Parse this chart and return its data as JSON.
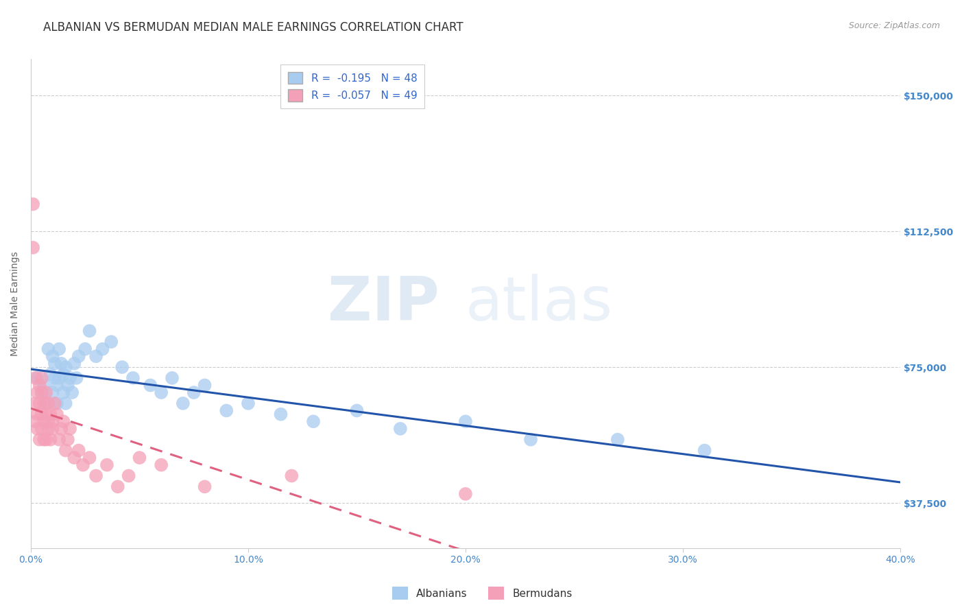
{
  "title": "ALBANIAN VS BERMUDAN MEDIAN MALE EARNINGS CORRELATION CHART",
  "source": "Source: ZipAtlas.com",
  "xlabel": "",
  "ylabel": "Median Male Earnings",
  "xlim": [
    0.0,
    0.4
  ],
  "ylim": [
    25000,
    160000
  ],
  "yticks": [
    37500,
    75000,
    112500,
    150000
  ],
  "ytick_labels": [
    "$37,500",
    "$75,000",
    "$112,500",
    "$150,000"
  ],
  "xticks": [
    0.0,
    0.1,
    0.2,
    0.3,
    0.4
  ],
  "xtick_labels": [
    "0.0%",
    "10.0%",
    "20.0%",
    "30.0%",
    "40.0%"
  ],
  "albanian_x": [
    0.003,
    0.005,
    0.006,
    0.007,
    0.008,
    0.009,
    0.01,
    0.01,
    0.011,
    0.011,
    0.012,
    0.012,
    0.013,
    0.013,
    0.014,
    0.015,
    0.015,
    0.016,
    0.016,
    0.017,
    0.018,
    0.019,
    0.02,
    0.021,
    0.022,
    0.025,
    0.027,
    0.03,
    0.033,
    0.037,
    0.042,
    0.047,
    0.055,
    0.06,
    0.065,
    0.07,
    0.075,
    0.08,
    0.09,
    0.1,
    0.115,
    0.13,
    0.15,
    0.17,
    0.2,
    0.23,
    0.27,
    0.31
  ],
  "albanian_y": [
    72000,
    68000,
    70000,
    65000,
    80000,
    73000,
    78000,
    68000,
    72000,
    76000,
    65000,
    70000,
    80000,
    72000,
    76000,
    68000,
    73000,
    75000,
    65000,
    70000,
    72000,
    68000,
    76000,
    72000,
    78000,
    80000,
    85000,
    78000,
    80000,
    82000,
    75000,
    72000,
    70000,
    68000,
    72000,
    65000,
    68000,
    70000,
    63000,
    65000,
    62000,
    60000,
    63000,
    58000,
    60000,
    55000,
    55000,
    52000
  ],
  "bermudan_x": [
    0.001,
    0.001,
    0.002,
    0.002,
    0.002,
    0.003,
    0.003,
    0.003,
    0.004,
    0.004,
    0.004,
    0.005,
    0.005,
    0.005,
    0.005,
    0.006,
    0.006,
    0.006,
    0.007,
    0.007,
    0.007,
    0.008,
    0.008,
    0.008,
    0.009,
    0.009,
    0.01,
    0.01,
    0.011,
    0.012,
    0.013,
    0.014,
    0.015,
    0.016,
    0.017,
    0.018,
    0.02,
    0.022,
    0.024,
    0.027,
    0.03,
    0.035,
    0.04,
    0.045,
    0.05,
    0.06,
    0.08,
    0.12,
    0.2
  ],
  "bermudan_y": [
    120000,
    108000,
    65000,
    60000,
    72000,
    58000,
    62000,
    68000,
    55000,
    65000,
    70000,
    62000,
    68000,
    58000,
    72000,
    60000,
    65000,
    55000,
    62000,
    68000,
    55000,
    60000,
    65000,
    58000,
    55000,
    62000,
    60000,
    58000,
    65000,
    62000,
    55000,
    58000,
    60000,
    52000,
    55000,
    58000,
    50000,
    52000,
    48000,
    50000,
    45000,
    48000,
    42000,
    45000,
    50000,
    48000,
    42000,
    45000,
    40000
  ],
  "albanian_color": "#A8CCF0",
  "bermudan_color": "#F4A0B8",
  "albanian_line_color": "#2255AA",
  "bermudan_line_color": "#E06080",
  "legend_r_albanian": "R =  -0.195   N = 48",
  "legend_r_bermudan": "R =  -0.057   N = 49",
  "legend_label_albanian": "Albanians",
  "legend_label_bermudan": "Bermudans",
  "watermark_zip": "ZIP",
  "watermark_atlas": "atlas",
  "background_color": "#FFFFFF",
  "grid_color": "#CCCCCC",
  "title_color": "#333333",
  "axis_label_color": "#666666",
  "tick_color_right": "#4488CC",
  "tick_color_x": "#4488CC",
  "title_fontsize": 12,
  "label_fontsize": 10,
  "tick_fontsize": 10
}
